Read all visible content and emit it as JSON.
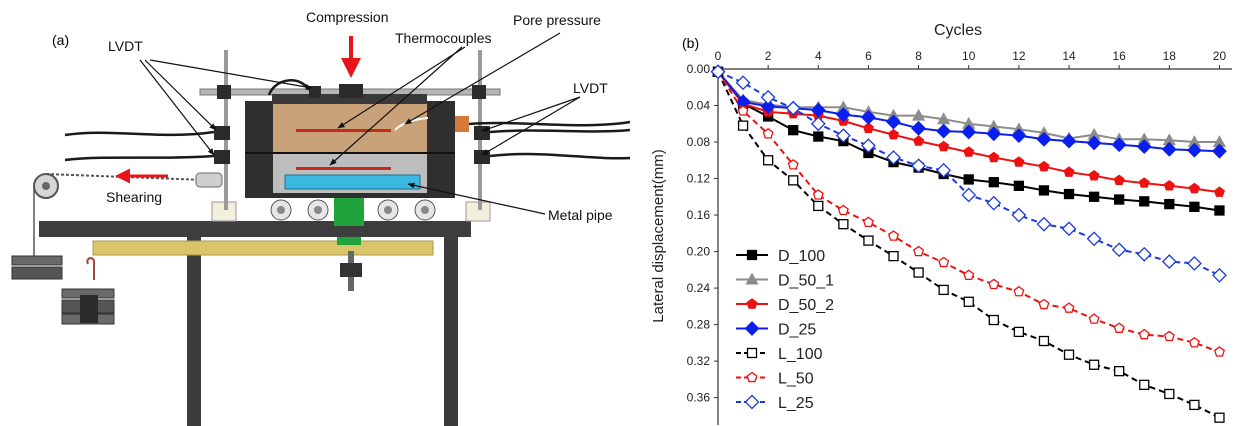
{
  "figure": {
    "panel_a": {
      "label": "(a)",
      "annotations": {
        "compression": "Compression",
        "pore_pressure": "Pore pressure",
        "thermocouples": "Thermocouples",
        "lvdt_left": "LVDT",
        "lvdt_right": "LVDT",
        "shearing": "Shearing",
        "metal_pipe": "Metal pipe"
      },
      "colors": {
        "arrow_red": "#e8141c",
        "apparatus_dark": "#3a3a3a",
        "sand": "#c9a27a",
        "clay_grey": "#bdbdbd",
        "pipe_cyan": "#39b9e0",
        "support_green": "#1fa33a",
        "wood_beam": "#d9c46a"
      }
    },
    "panel_b": {
      "label": "(b)"
    }
  },
  "chart_data": {
    "type": "line",
    "title": "",
    "xlabel": "Cycles",
    "ylabel": "Lateral displacement(mm)",
    "x_axis_position": "top",
    "y_inverted": true,
    "xlim": [
      0,
      20.5
    ],
    "ylim": [
      0,
      0.39
    ],
    "x_ticks": [
      "0",
      "2",
      "4",
      "6",
      "8",
      "10",
      "12",
      "14",
      "16",
      "18",
      "20"
    ],
    "y_ticks": [
      "0.00",
      "0.04",
      "0.08",
      "0.12",
      "0.16",
      "0.20",
      "0.24",
      "0.28",
      "0.32",
      "0.36"
    ],
    "legend_position": "bottom-left",
    "x": [
      0,
      1,
      2,
      3,
      4,
      5,
      6,
      7,
      8,
      9,
      10,
      11,
      12,
      13,
      14,
      15,
      16,
      17,
      18,
      19,
      20
    ],
    "series": [
      {
        "name": "D_100",
        "color": "#000000",
        "marker": "square",
        "filled": true,
        "dashed": false,
        "values": [
          0.003,
          0.038,
          0.052,
          0.067,
          0.074,
          0.079,
          0.092,
          0.102,
          0.108,
          0.115,
          0.121,
          0.124,
          0.128,
          0.133,
          0.137,
          0.14,
          0.143,
          0.145,
          0.148,
          0.151,
          0.155
        ]
      },
      {
        "name": "D_50_1",
        "color": "#8c8c8c",
        "marker": "triangle",
        "filled": true,
        "dashed": false,
        "values": [
          0.003,
          0.034,
          0.039,
          0.042,
          0.042,
          0.042,
          0.047,
          0.051,
          0.051,
          0.055,
          0.06,
          0.063,
          0.066,
          0.07,
          0.076,
          0.072,
          0.077,
          0.077,
          0.078,
          0.08,
          0.08
        ]
      },
      {
        "name": "D_50_2",
        "color": "#ee1111",
        "marker": "pentagon",
        "filled": true,
        "dashed": false,
        "values": [
          0.003,
          0.038,
          0.047,
          0.049,
          0.051,
          0.057,
          0.065,
          0.072,
          0.079,
          0.085,
          0.091,
          0.097,
          0.102,
          0.107,
          0.113,
          0.117,
          0.122,
          0.125,
          0.128,
          0.131,
          0.135
        ]
      },
      {
        "name": "D_25",
        "color": "#0a1ef0",
        "marker": "diamond",
        "filled": true,
        "dashed": false,
        "values": [
          0.003,
          0.036,
          0.041,
          0.043,
          0.045,
          0.05,
          0.053,
          0.058,
          0.065,
          0.068,
          0.069,
          0.071,
          0.073,
          0.077,
          0.079,
          0.081,
          0.083,
          0.085,
          0.088,
          0.089,
          0.09
        ]
      },
      {
        "name": "L_100",
        "color": "#000000",
        "marker": "square",
        "filled": false,
        "dashed": true,
        "values": [
          0.003,
          0.062,
          0.1,
          0.122,
          0.15,
          0.17,
          0.188,
          0.205,
          0.223,
          0.242,
          0.255,
          0.275,
          0.288,
          0.298,
          0.313,
          0.324,
          0.331,
          0.346,
          0.356,
          0.368,
          0.382
        ]
      },
      {
        "name": "L_50",
        "color": "#ee1111",
        "marker": "pentagon",
        "filled": false,
        "dashed": true,
        "values": [
          0.003,
          0.046,
          0.071,
          0.105,
          0.138,
          0.155,
          0.168,
          0.183,
          0.2,
          0.212,
          0.226,
          0.236,
          0.244,
          0.258,
          0.262,
          0.274,
          0.284,
          0.291,
          0.293,
          0.3,
          0.31
        ]
      },
      {
        "name": "L_25",
        "color": "#1a3ae0",
        "marker": "diamond",
        "filled": false,
        "dashed": true,
        "values": [
          0.003,
          0.015,
          0.031,
          0.043,
          0.06,
          0.073,
          0.084,
          0.097,
          0.106,
          0.111,
          0.138,
          0.147,
          0.16,
          0.17,
          0.175,
          0.186,
          0.198,
          0.203,
          0.211,
          0.213,
          0.226
        ]
      }
    ]
  }
}
